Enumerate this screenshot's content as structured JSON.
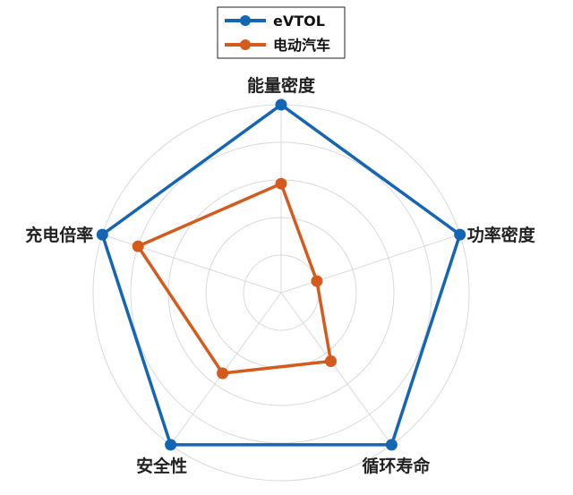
{
  "chart_data": {
    "type": "radar",
    "title": "",
    "axes": [
      "能量密度",
      "功率密度",
      "循环寿命",
      "安全性",
      "充电倍率"
    ],
    "rmax": 1,
    "rings": [
      0.2,
      0.4,
      0.6,
      0.8,
      1.0
    ],
    "grid": true,
    "legend_position": "top-center",
    "series": [
      {
        "name": "eVTOL",
        "color": "#1565b5",
        "values": [
          1.0,
          1.0,
          1.0,
          1.0,
          1.0
        ]
      },
      {
        "name": "电动汽车",
        "color": "#d45a1e",
        "values": [
          0.58,
          0.2,
          0.45,
          0.53,
          0.8
        ]
      }
    ]
  }
}
